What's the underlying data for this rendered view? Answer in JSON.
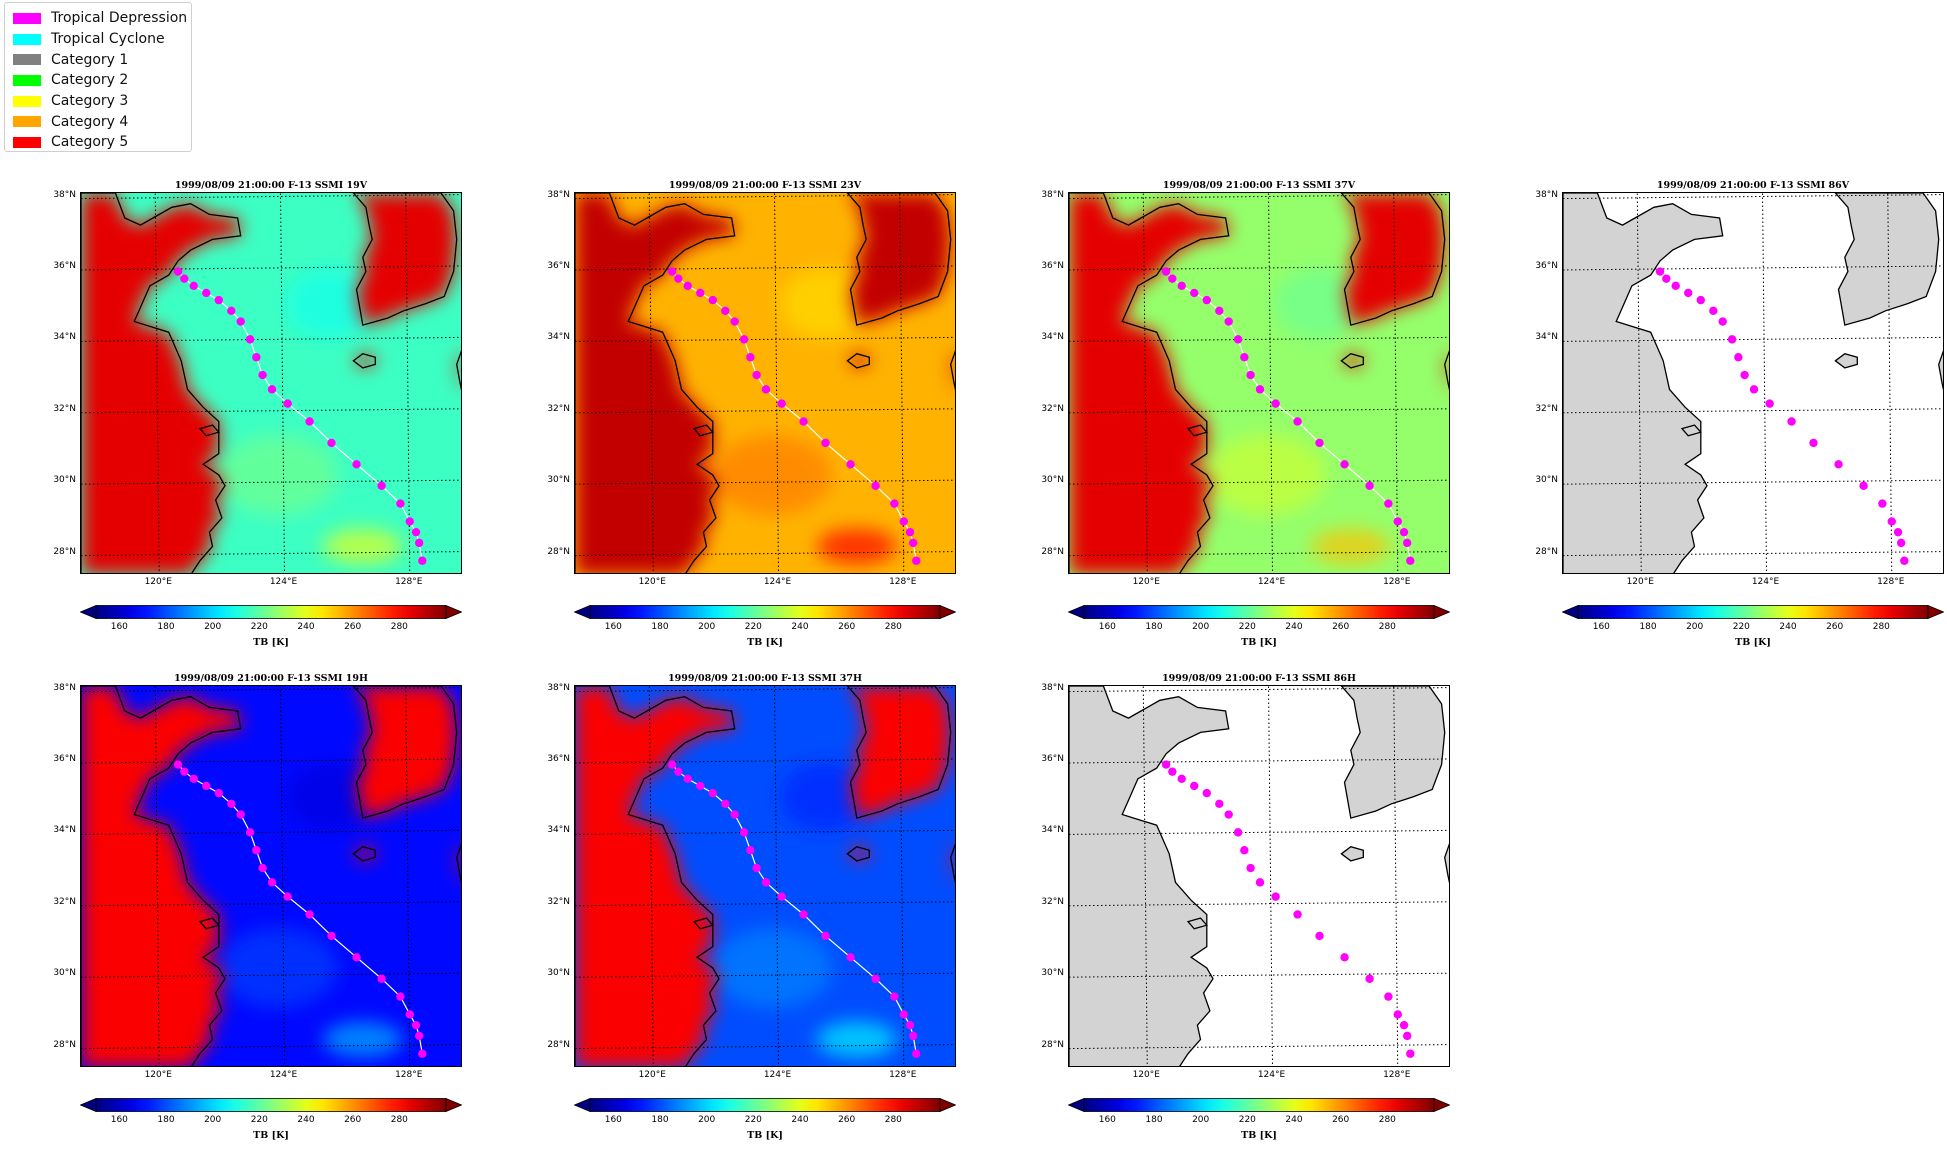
{
  "legend": {
    "items": [
      {
        "label": "Tropical Depression",
        "color": "#ff00ff"
      },
      {
        "label": "Tropical Cyclone",
        "color": "#00ffff"
      },
      {
        "label": "Category 1",
        "color": "#808080"
      },
      {
        "label": "Category 2",
        "color": "#00ff00"
      },
      {
        "label": "Category 3",
        "color": "#ffff00"
      },
      {
        "label": "Category 4",
        "color": "#ffa500"
      },
      {
        "label": "Category 5",
        "color": "#ff0000"
      }
    ]
  },
  "lat_labels": [
    "38°N",
    "36°N",
    "34°N",
    "32°N",
    "30°N",
    "28°N"
  ],
  "lon_labels": [
    "120°E",
    "124°E",
    "128°E"
  ],
  "colorbar": {
    "ticks": [
      "160",
      "180",
      "200",
      "220",
      "240",
      "260",
      "280"
    ],
    "label": "TB [K]",
    "range": [
      150,
      300
    ]
  },
  "track": {
    "color": "#ff00ff",
    "points": [
      [
        120.6,
        35.9
      ],
      [
        120.8,
        35.7
      ],
      [
        121.1,
        35.5
      ],
      [
        121.5,
        35.3
      ],
      [
        121.9,
        35.1
      ],
      [
        122.3,
        34.8
      ],
      [
        122.6,
        34.5
      ],
      [
        122.9,
        34.0
      ],
      [
        123.1,
        33.5
      ],
      [
        123.3,
        33.0
      ],
      [
        123.6,
        32.6
      ],
      [
        124.1,
        32.2
      ],
      [
        124.8,
        31.7
      ],
      [
        125.5,
        31.1
      ],
      [
        126.3,
        30.5
      ],
      [
        127.1,
        29.9
      ],
      [
        127.7,
        29.4
      ],
      [
        128.0,
        28.9
      ],
      [
        128.2,
        28.6
      ],
      [
        128.3,
        28.3
      ],
      [
        128.4,
        27.8
      ]
    ]
  },
  "panels": [
    {
      "title": "1999/08/09 21:00:00  F-13 SSMI 19V",
      "ocean_tb": 215,
      "land_tb": 285,
      "mode": "tb"
    },
    {
      "title": "1999/08/09 21:00:00  F-13 SSMI 23V",
      "ocean_tb": 255,
      "land_tb": 290,
      "mode": "tb"
    },
    {
      "title": "1999/08/09 21:00:00  F-13 SSMI 37V",
      "ocean_tb": 228,
      "land_tb": 285,
      "mode": "tb"
    },
    {
      "title": "1999/08/09 21:00:00  F-13 SSMI 86V",
      "mode": "blank"
    },
    {
      "title": "1999/08/09 21:00:00  F-13 SSMI 19H",
      "ocean_tb": 170,
      "land_tb": 282,
      "mode": "tb"
    },
    {
      "title": "1999/08/09 21:00:00  F-13 SSMI 37H",
      "ocean_tb": 180,
      "land_tb": 282,
      "mode": "tb"
    },
    {
      "title": "1999/08/09 21:00:00  F-13 SSMI 86H",
      "mode": "blank"
    }
  ]
}
